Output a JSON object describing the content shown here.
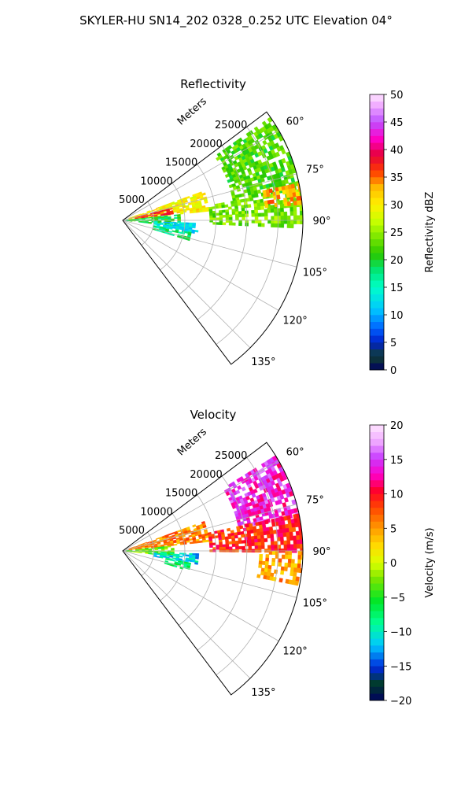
{
  "figure": {
    "suptitle": "SKYLER-HU  SN14_202  0328_0.252 UTC Elevation 04°"
  },
  "chart_data": [
    {
      "type": "heatmap",
      "subtype": "polar-sector",
      "title": "Reflectivity",
      "radial_label": "Meters",
      "radial_ticks": [
        5000,
        10000,
        15000,
        20000,
        25000
      ],
      "azimuth_ticks": [
        "60°",
        "75°",
        "90°",
        "105°",
        "120°",
        "135°"
      ],
      "theta_range_deg": [
        53,
        143
      ],
      "r_range_m": [
        0,
        29000
      ],
      "grid": true,
      "colorbar": {
        "label": "Reflectivity dBZ",
        "min": 0,
        "max": 50,
        "ticks": [
          "0",
          "5",
          "10",
          "15",
          "20",
          "25",
          "30",
          "35",
          "40",
          "45",
          "50"
        ]
      },
      "echo_regions": [
        {
          "az": [
            55,
            80
          ],
          "r": [
            18000,
            29000
          ],
          "value": 22
        },
        {
          "az": [
            70,
            84
          ],
          "r": [
            1000,
            14000
          ],
          "value": 30
        },
        {
          "az": [
            76,
            82
          ],
          "r": [
            2000,
            8000
          ],
          "value": 37
        },
        {
          "az": [
            84,
            96
          ],
          "r": [
            500,
            9000
          ],
          "value": 20
        },
        {
          "az": [
            92,
            100
          ],
          "r": [
            5000,
            12000
          ],
          "value": 13
        },
        {
          "az": [
            100,
            107
          ],
          "r": [
            5000,
            11000
          ],
          "value": 18
        },
        {
          "az": [
            80,
            92
          ],
          "r": [
            14000,
            29000
          ],
          "value": 24
        },
        {
          "az": [
            78,
            84
          ],
          "r": [
            23000,
            29000
          ],
          "value": 33
        }
      ]
    },
    {
      "type": "heatmap",
      "subtype": "polar-sector",
      "title": "Velocity",
      "radial_label": "Meters",
      "radial_ticks": [
        5000,
        10000,
        15000,
        20000,
        25000
      ],
      "azimuth_ticks": [
        "60°",
        "75°",
        "90°",
        "105°",
        "120°",
        "135°"
      ],
      "theta_range_deg": [
        53,
        143
      ],
      "r_range_m": [
        0,
        29000
      ],
      "grid": true,
      "colorbar": {
        "label": "Velocity (m/s)",
        "min": -20,
        "max": 20,
        "ticks": [
          "−20",
          "−15",
          "−10",
          "−5",
          "0",
          "5",
          "10",
          "15",
          "20"
        ]
      },
      "echo_regions": [
        {
          "az": [
            58,
            78
          ],
          "r": [
            19000,
            29000
          ],
          "value": 14
        },
        {
          "az": [
            70,
            84
          ],
          "r": [
            1000,
            14000
          ],
          "value": 6
        },
        {
          "az": [
            78,
            90
          ],
          "r": [
            14000,
            29000
          ],
          "value": 9
        },
        {
          "az": [
            84,
            96
          ],
          "r": [
            500,
            8000
          ],
          "value": -3
        },
        {
          "az": [
            92,
            100
          ],
          "r": [
            5000,
            12000
          ],
          "value": -11
        },
        {
          "az": [
            90,
            100
          ],
          "r": [
            22000,
            29000
          ],
          "value": 5
        },
        {
          "az": [
            100,
            107
          ],
          "r": [
            7000,
            11000
          ],
          "value": -7
        }
      ]
    }
  ]
}
